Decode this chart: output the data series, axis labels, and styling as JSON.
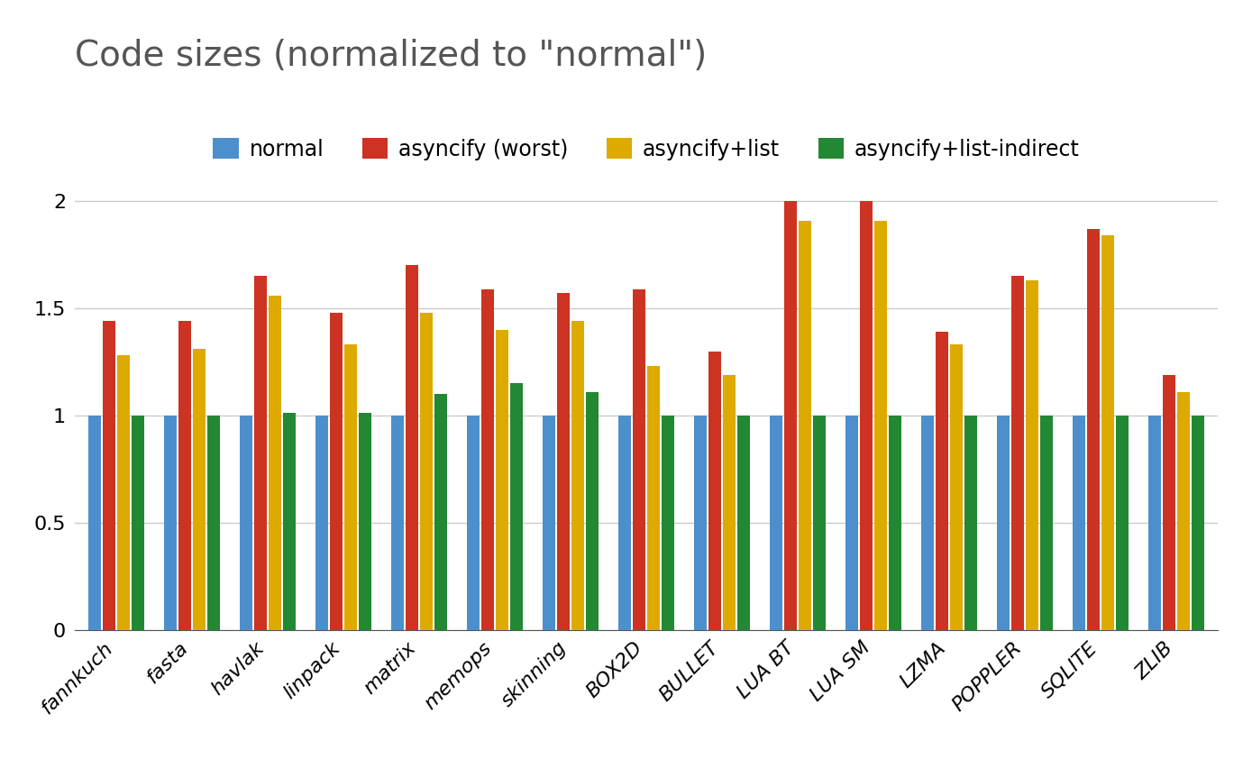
{
  "title": "Code sizes (normalized to \"normal\")",
  "categories": [
    "fannkuch",
    "fasta",
    "havlak",
    "linpack",
    "matrix",
    "memops",
    "skinning",
    "BOX2D",
    "BULLET",
    "LUA BT",
    "LUA SM",
    "LZMA",
    "POPPLER",
    "SQLITE",
    "ZLIB"
  ],
  "series": {
    "normal": [
      1.0,
      1.0,
      1.0,
      1.0,
      1.0,
      1.0,
      1.0,
      1.0,
      1.0,
      1.0,
      1.0,
      1.0,
      1.0,
      1.0,
      1.0
    ],
    "asyncify (worst)": [
      1.44,
      1.44,
      1.65,
      1.48,
      1.7,
      1.59,
      1.57,
      1.59,
      1.3,
      2.0,
      2.0,
      1.39,
      1.65,
      1.87,
      1.19
    ],
    "asyncify+list": [
      1.28,
      1.31,
      1.56,
      1.33,
      1.48,
      1.4,
      1.44,
      1.23,
      1.19,
      1.91,
      1.91,
      1.33,
      1.63,
      1.84,
      1.11
    ],
    "asyncify+list-indirect": [
      1.0,
      1.0,
      1.01,
      1.01,
      1.1,
      1.15,
      1.11,
      1.0,
      1.0,
      1.0,
      1.0,
      1.0,
      1.0,
      1.0,
      1.0
    ]
  },
  "series_order": [
    "normal",
    "asyncify (worst)",
    "asyncify+list",
    "asyncify+list-indirect"
  ],
  "colors": {
    "normal": "#4d8fcc",
    "asyncify (worst)": "#cc3322",
    "asyncify+list": "#ddaa00",
    "asyncify+list-indirect": "#228833"
  },
  "ylim": [
    0,
    2.15
  ],
  "yticks": [
    0,
    0.5,
    1.0,
    1.5,
    2.0
  ],
  "title_fontsize": 28,
  "tick_fontsize": 16,
  "legend_fontsize": 17,
  "background_color": "#ffffff",
  "grid_color": "#cccccc"
}
